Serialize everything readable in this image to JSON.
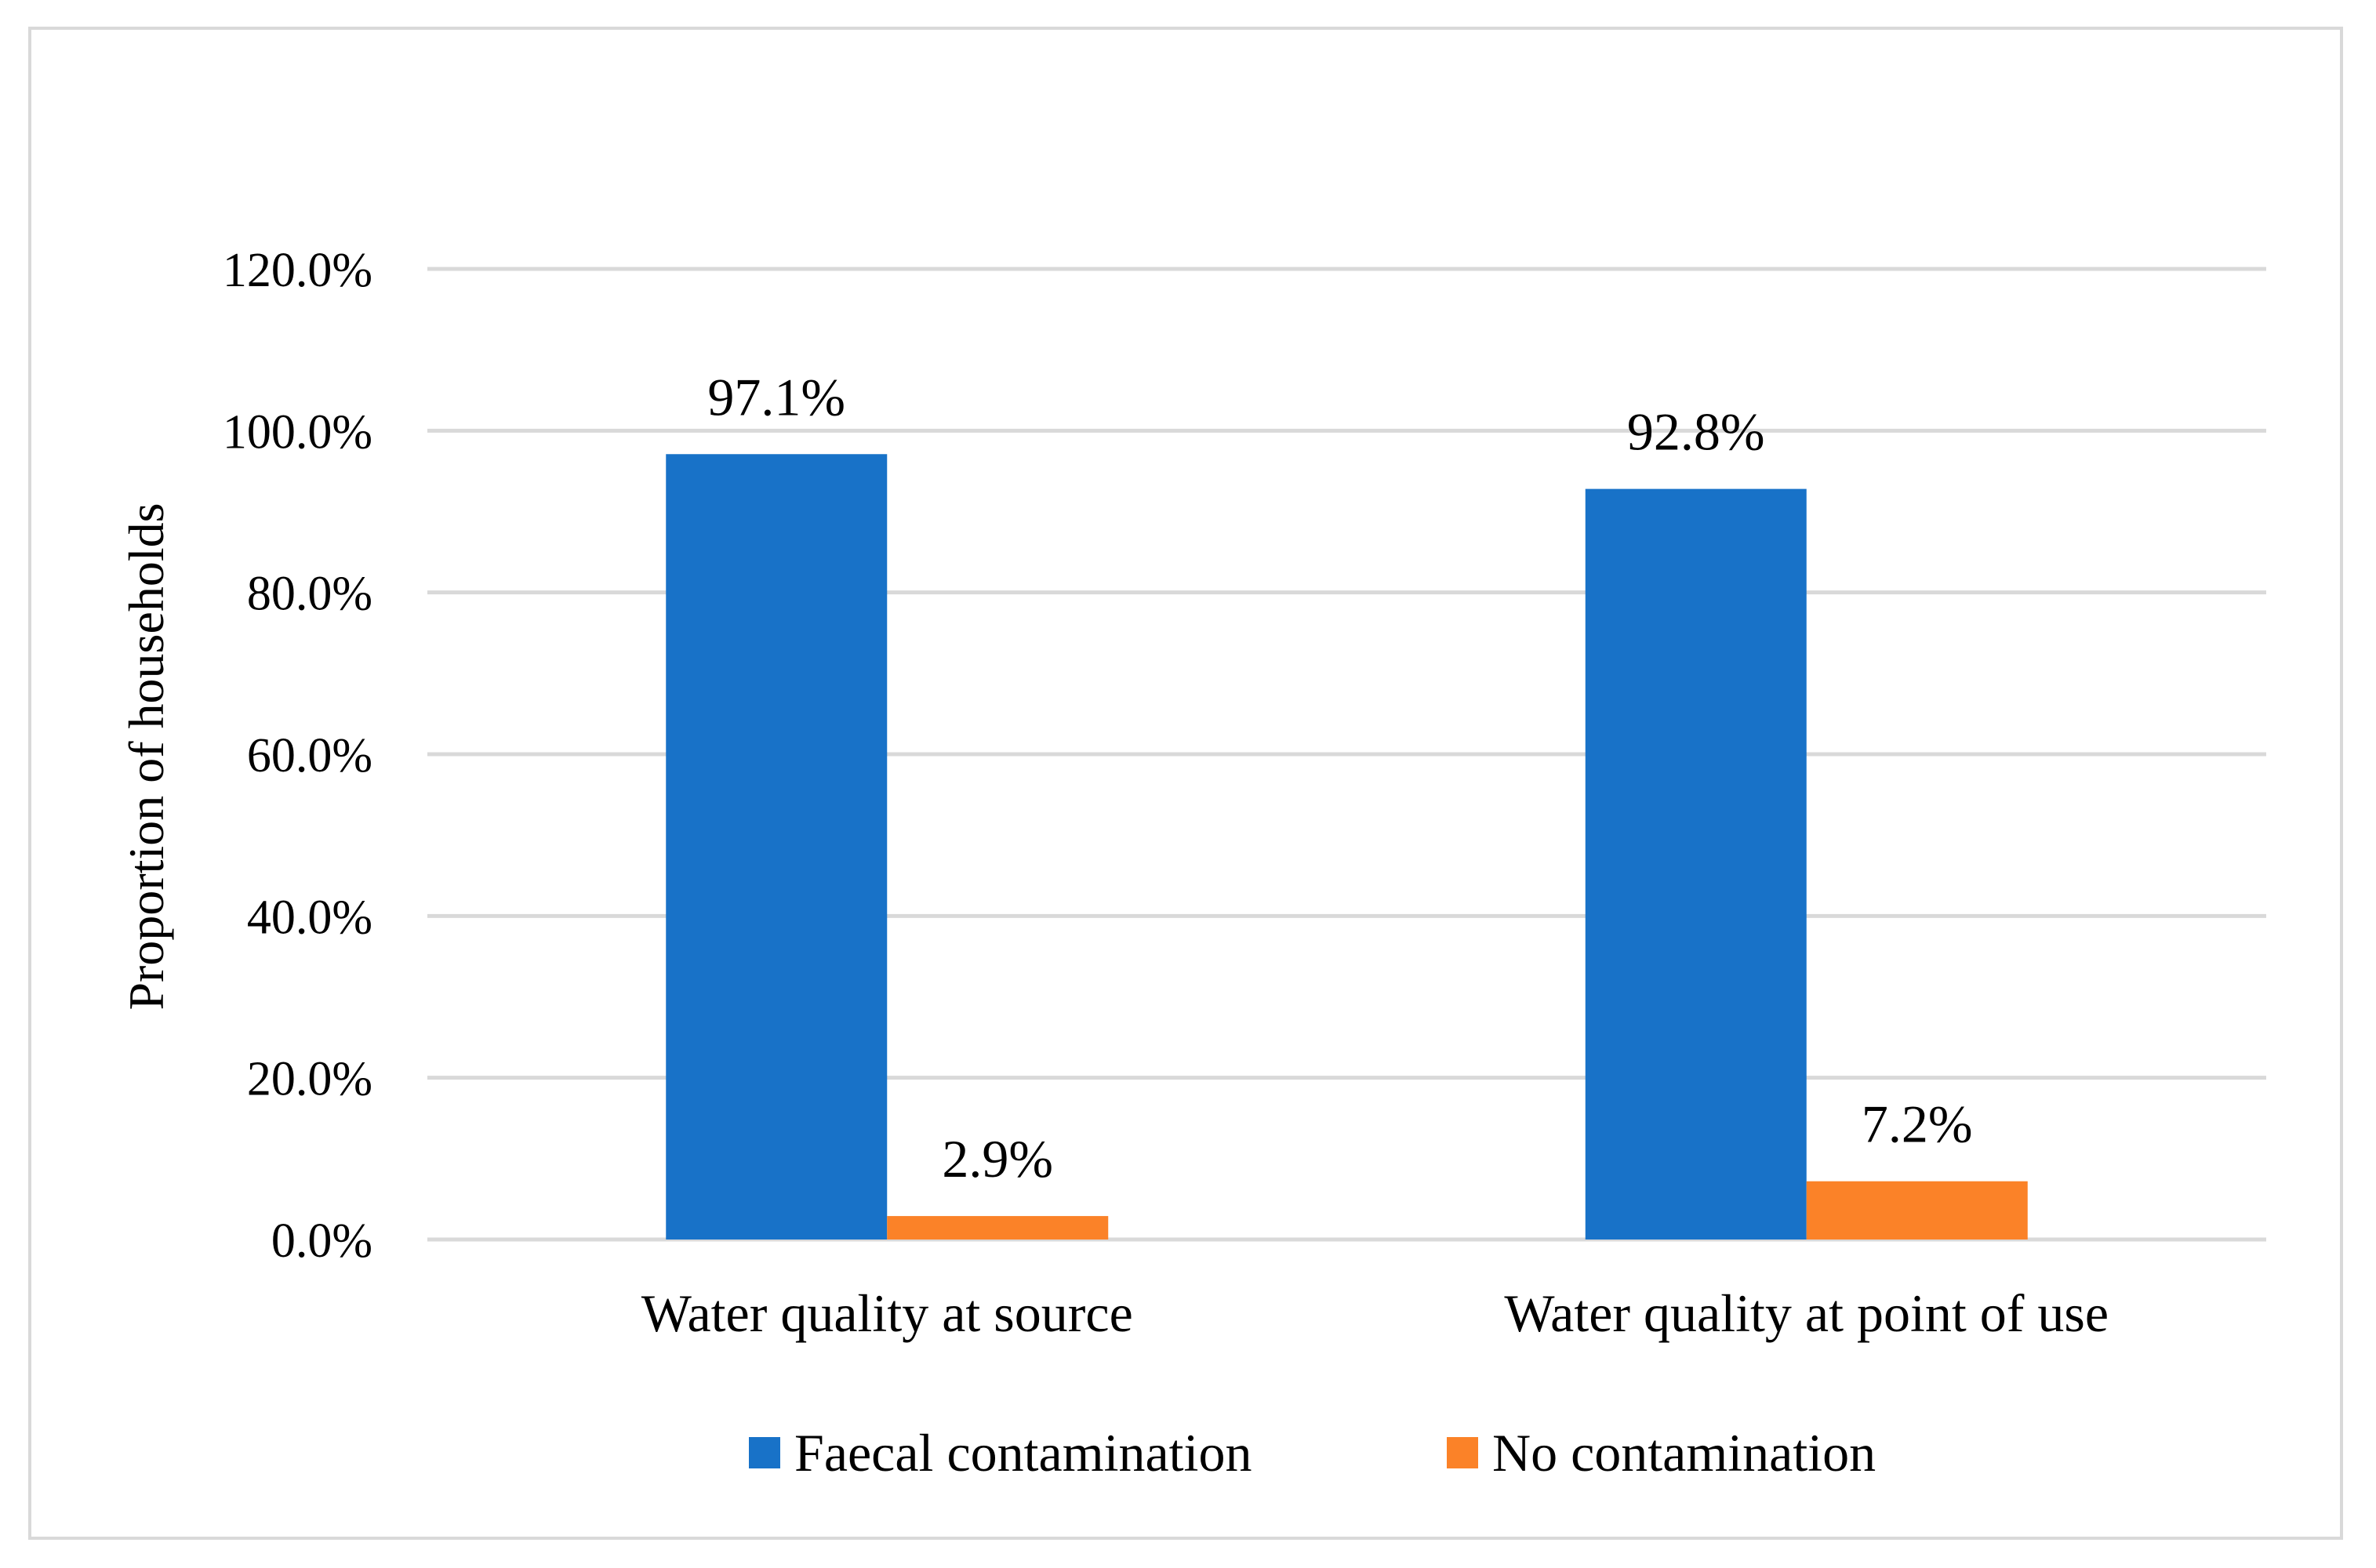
{
  "chart_data": {
    "type": "bar",
    "title": "",
    "xlabel": "",
    "ylabel": "Proportion of households",
    "ylim": [
      0,
      120
    ],
    "ytick_step": 20,
    "ytick_suffix": "%",
    "grid": true,
    "legend_position": "bottom",
    "categories": [
      "Water quality at source",
      "Water quality at point of use"
    ],
    "series": [
      {
        "name": "Faecal contamination",
        "color": "#1872c8",
        "values": [
          97.1,
          92.8
        ],
        "labels": [
          "97.1%",
          "92.8%"
        ]
      },
      {
        "name": "No contamination",
        "color": "#fb8228",
        "values": [
          2.9,
          7.2
        ],
        "labels": [
          "2.9%",
          "7.2%"
        ]
      }
    ]
  }
}
